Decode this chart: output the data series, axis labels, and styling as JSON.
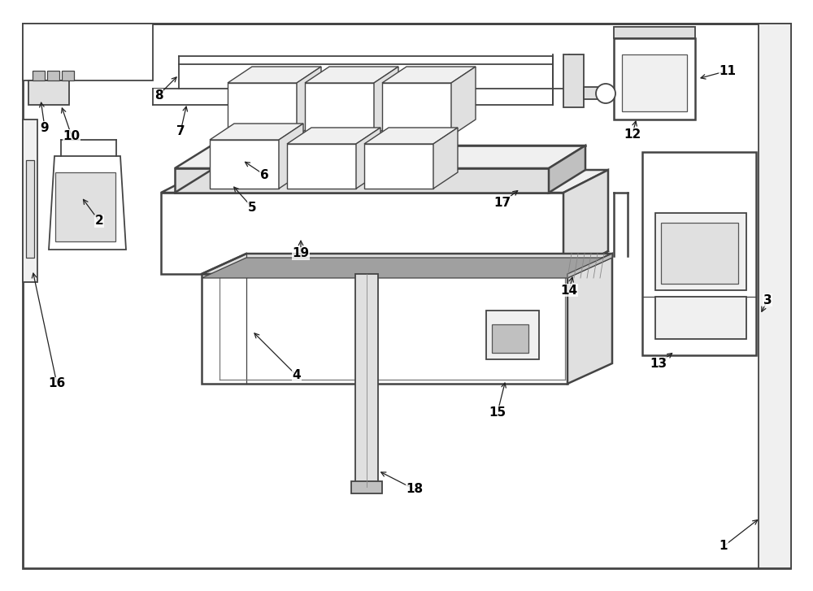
{
  "bg_color": "#ffffff",
  "lc": "#444444",
  "lw_main": 1.3,
  "lw_thick": 1.8,
  "lw_thin": 0.9,
  "gray_light": "#f0f0f0",
  "gray_med": "#e0e0e0",
  "gray_dark": "#c0c0c0",
  "gray_darker": "#a0a0a0",
  "font_size": 11,
  "font_size_large": 12
}
